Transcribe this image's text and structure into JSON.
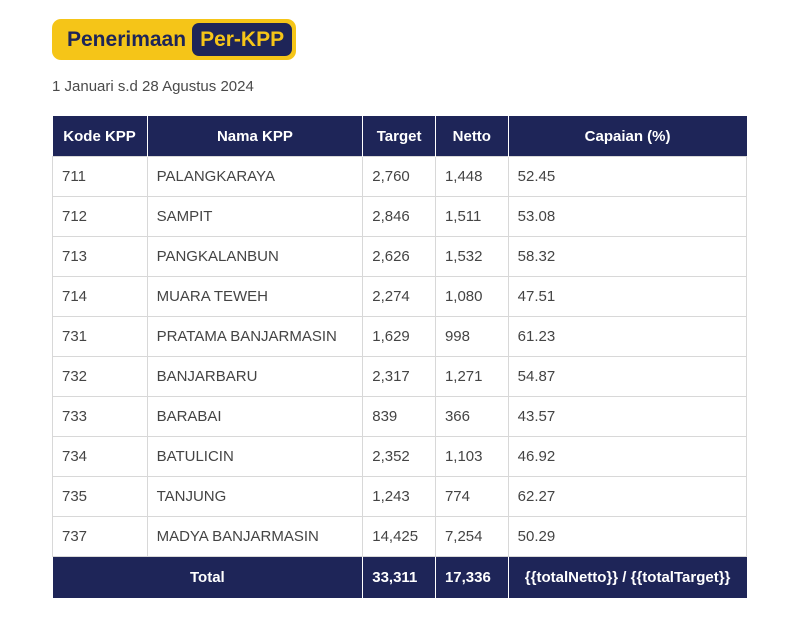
{
  "header": {
    "title_part1": "Penerimaan",
    "title_part2": "Per-KPP",
    "subtitle": "1 Januari s.d 28 Agustus 2024"
  },
  "table": {
    "columns": [
      "Kode KPP",
      "Nama KPP",
      "Target",
      "Netto",
      "Capaian (%)"
    ],
    "rows": [
      {
        "kode": "711",
        "nama": "PALANGKARAYA",
        "target": "2,760",
        "netto": "1,448",
        "capaian": "52.45"
      },
      {
        "kode": "712",
        "nama": "SAMPIT",
        "target": "2,846",
        "netto": "1,511",
        "capaian": "53.08"
      },
      {
        "kode": "713",
        "nama": "PANGKALANBUN",
        "target": "2,626",
        "netto": "1,532",
        "capaian": "58.32"
      },
      {
        "kode": "714",
        "nama": "MUARA TEWEH",
        "target": "2,274",
        "netto": "1,080",
        "capaian": "47.51"
      },
      {
        "kode": "731",
        "nama": "PRATAMA BANJARMASIN",
        "target": "1,629",
        "netto": "998",
        "capaian": "61.23"
      },
      {
        "kode": "732",
        "nama": "BANJARBARU",
        "target": "2,317",
        "netto": "1,271",
        "capaian": "54.87"
      },
      {
        "kode": "733",
        "nama": "BARABAI",
        "target": "839",
        "netto": "366",
        "capaian": "43.57"
      },
      {
        "kode": "734",
        "nama": "BATULICIN",
        "target": "2,352",
        "netto": "1,103",
        "capaian": "46.92"
      },
      {
        "kode": "735",
        "nama": "TANJUNG",
        "target": "1,243",
        "netto": "774",
        "capaian": "62.27"
      },
      {
        "kode": "737",
        "nama": "MADYA BANJARMASIN",
        "target": "14,425",
        "netto": "7,254",
        "capaian": "50.29"
      }
    ],
    "total": {
      "label": "Total",
      "target": "33,311",
      "netto": "17,336",
      "capaian": "{{totalNetto}} / {{totalTarget}}"
    }
  },
  "colors": {
    "navy": "#1e2558",
    "yellow": "#f5c518"
  }
}
